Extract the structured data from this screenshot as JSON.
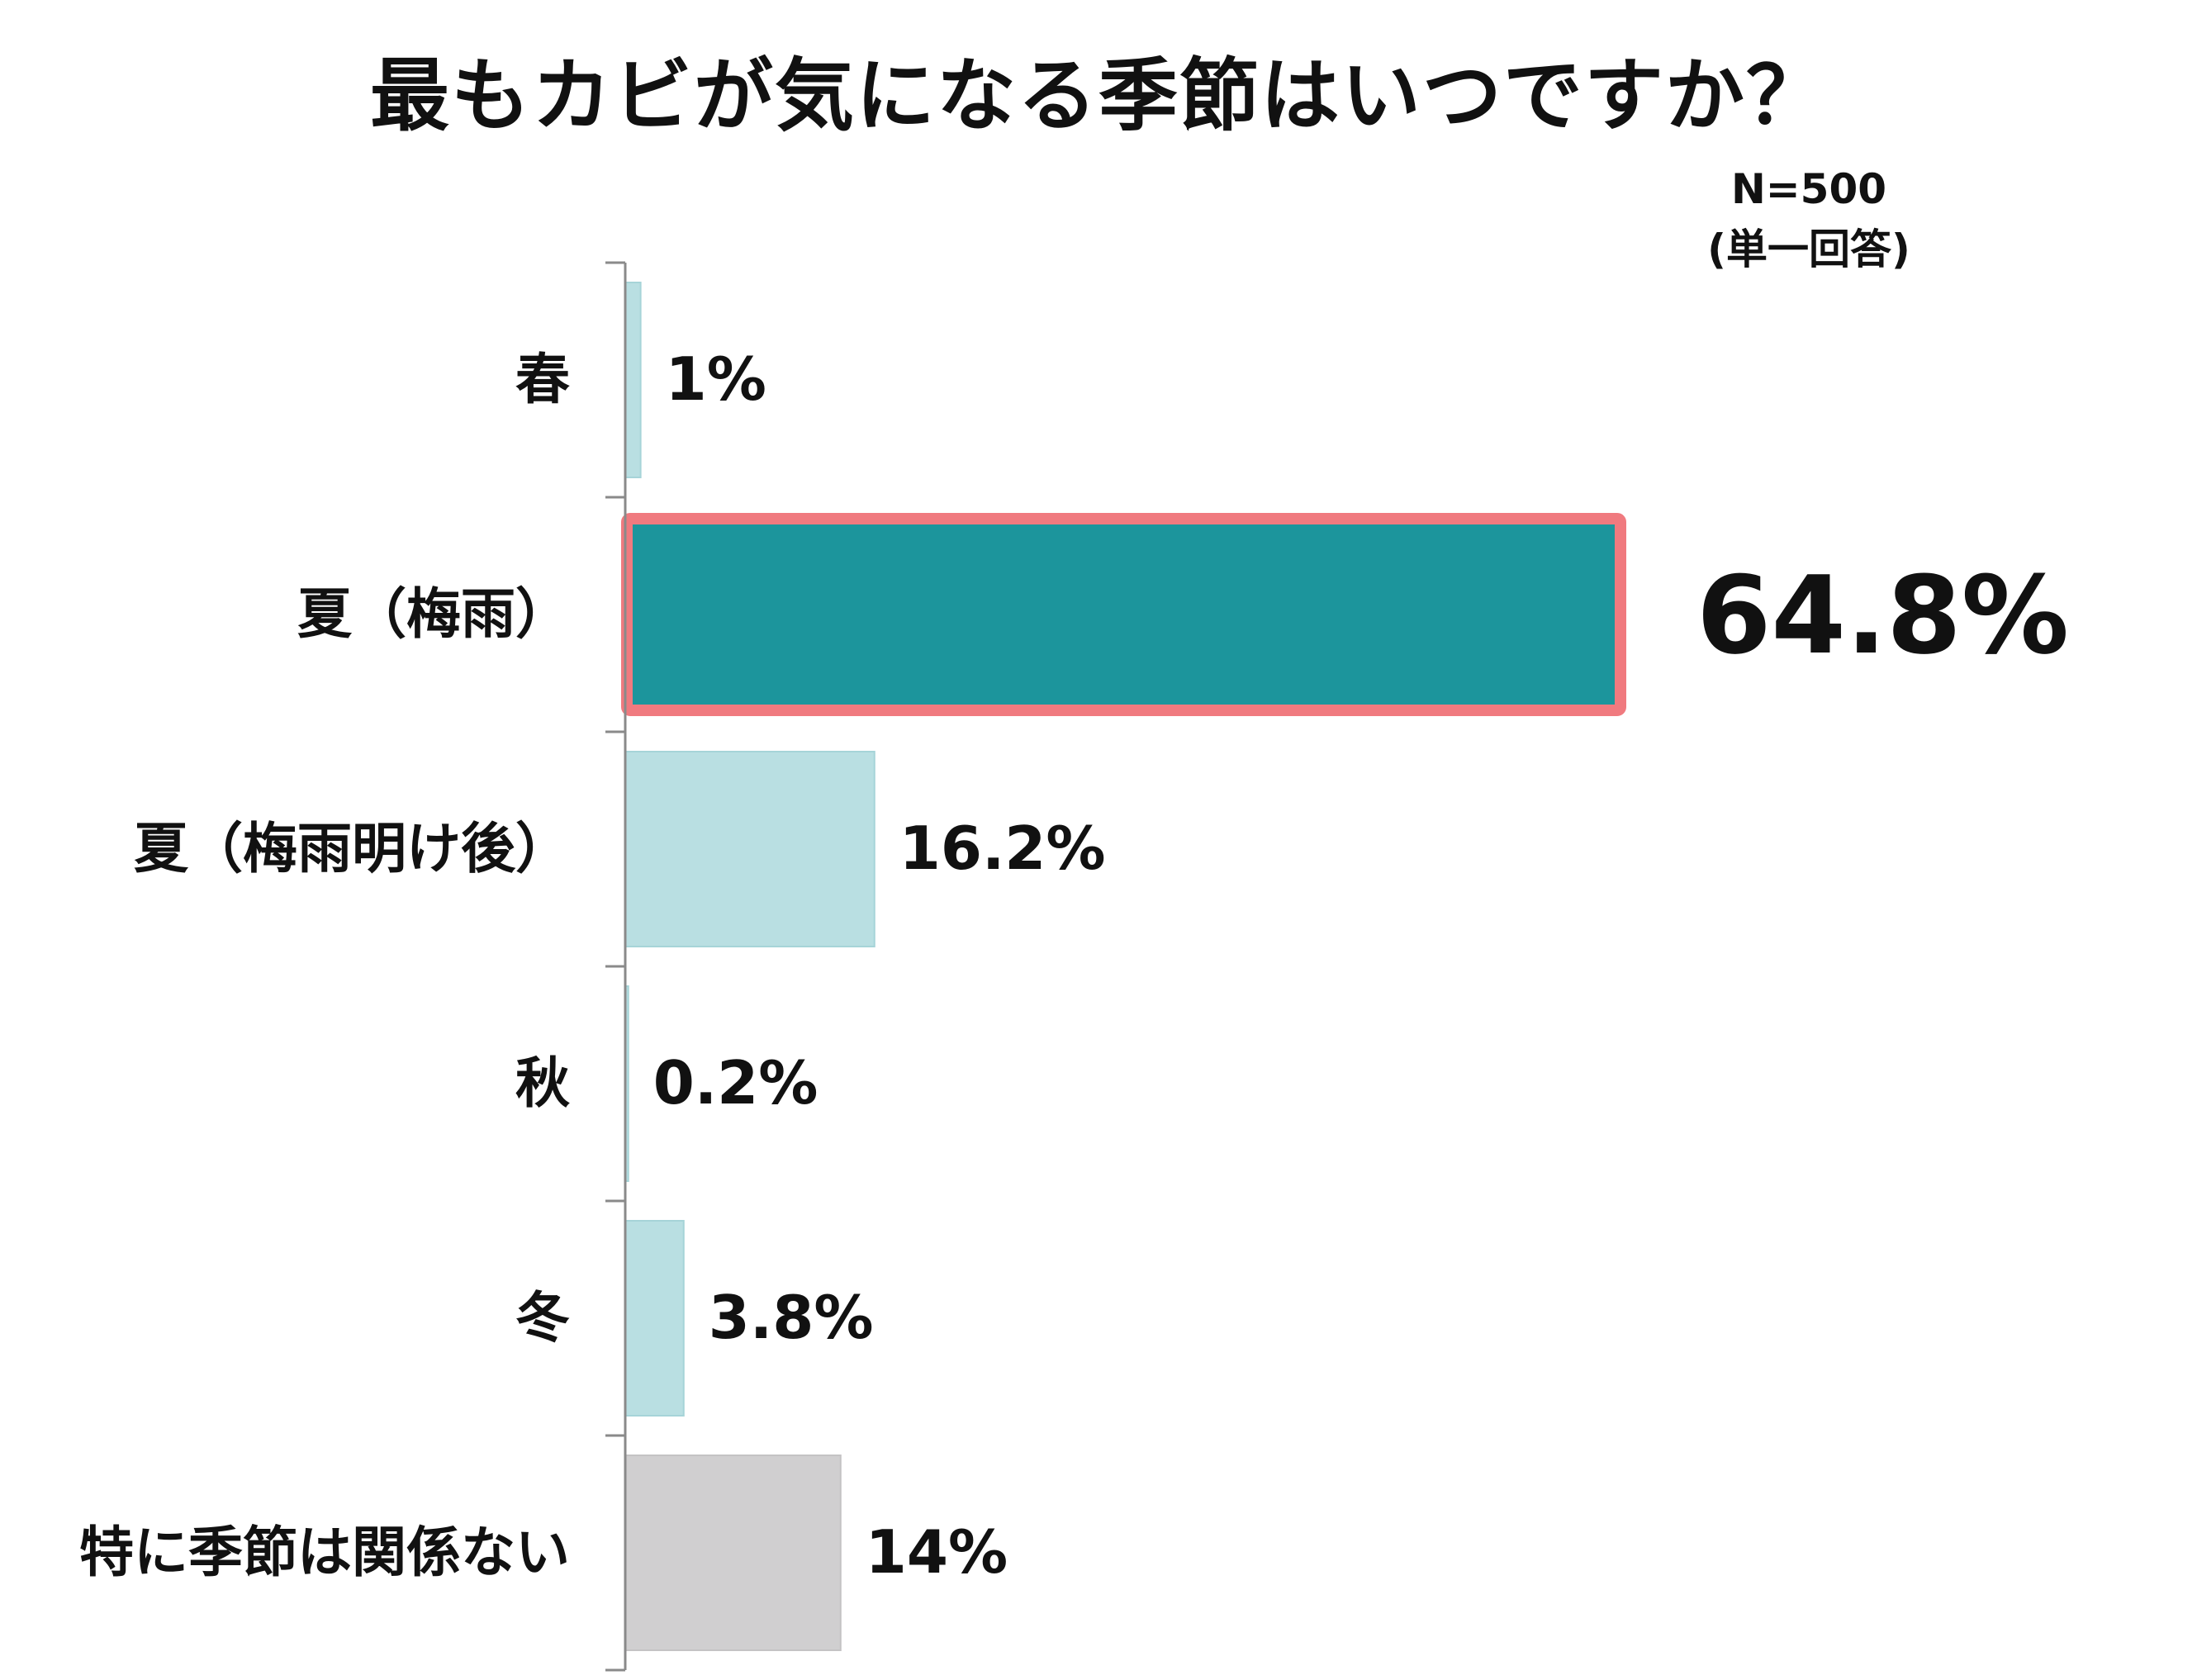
{
  "title": "最もカビが気になる季節はいつですか？",
  "sample_note": "N=500",
  "answer_note": "(単一回答)",
  "colors": {
    "bar_default": "#b9dfe2",
    "bar_highlight": "#1c959c",
    "highlight_border": "#f07a7f",
    "bar_other": "#d0cfd0",
    "highlight_label": "#1c959c",
    "axis": "#8a8a8a"
  },
  "chart_data": {
    "type": "bar",
    "orientation": "horizontal",
    "title": "最もカビが気になる季節はいつですか？",
    "categories": [
      "春",
      "夏（梅雨）",
      "夏（梅雨明け後）",
      "秋",
      "冬",
      "特に季節は関係ない"
    ],
    "values": [
      1,
      64.8,
      16.2,
      0.2,
      3.8,
      14
    ],
    "value_labels": [
      "1%",
      "64.8%",
      "16.2%",
      "0.2%",
      "3.8%",
      "14%"
    ],
    "highlight_index": 1,
    "xlim": [
      0,
      70
    ],
    "grid": false,
    "legend": "none"
  }
}
